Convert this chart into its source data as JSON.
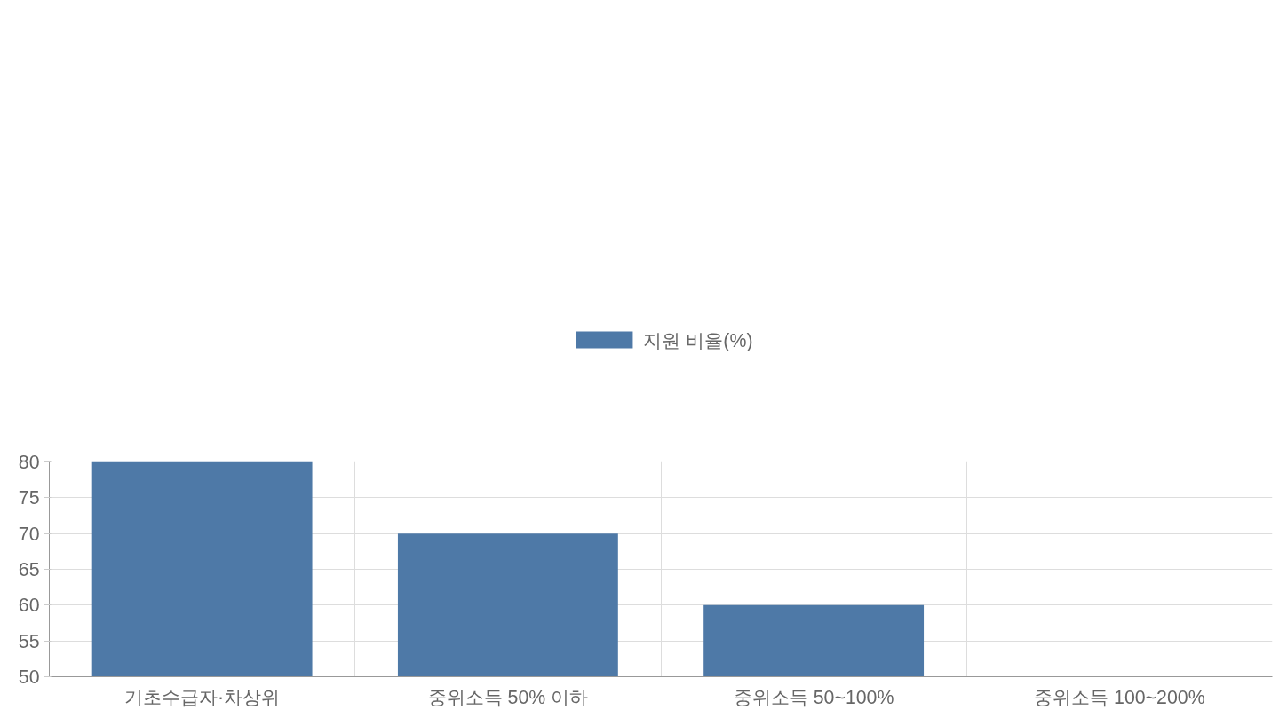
{
  "chart_data": {
    "type": "bar",
    "categories": [
      "기초수급자·차상위",
      "중위소득 50% 이하",
      "중위소득 50~100%",
      "중위소득 100~200%"
    ],
    "series": [
      {
        "name": "지원 비율(%)",
        "color": "#4e79a7",
        "values": [
          80,
          70,
          60,
          50
        ]
      }
    ],
    "ylim": [
      50,
      80
    ],
    "yticks": [
      50,
      55,
      60,
      65,
      70,
      75,
      80
    ],
    "grid": true,
    "legend": "top"
  }
}
